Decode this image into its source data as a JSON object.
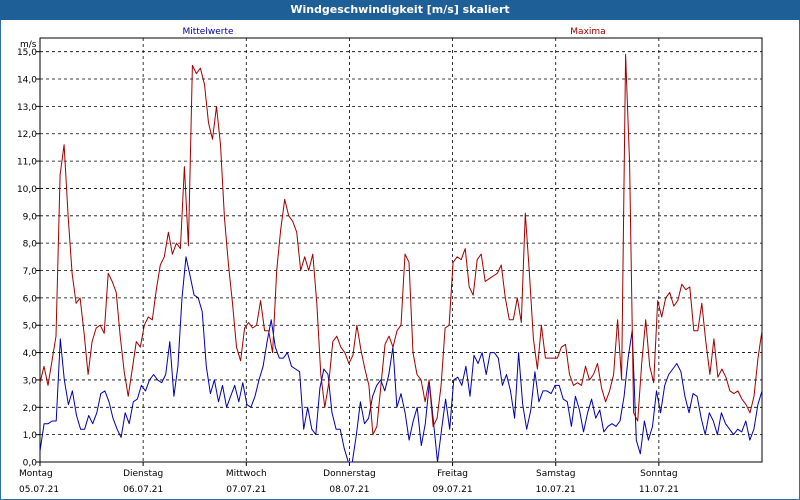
{
  "chart_data": {
    "type": "line",
    "title": "Windgeschwindigkeit [m/s] skaliert",
    "ylabel": "m/s",
    "ylim": [
      0,
      15.5
    ],
    "yticks": [
      "0,0",
      "1,0",
      "2,0",
      "3,0",
      "4,0",
      "5,0",
      "6,0",
      "7,0",
      "8,0",
      "9,0",
      "10,0",
      "11,0",
      "12,0",
      "13,0",
      "14,0",
      "15,0"
    ],
    "xlim": [
      0,
      7
    ],
    "x_ticks": [
      {
        "day": "Montag",
        "date": "05.07.21"
      },
      {
        "day": "Dienstag",
        "date": "06.07.21"
      },
      {
        "day": "Mittwoch",
        "date": "07.07.21"
      },
      {
        "day": "Donnerstag",
        "date": "08.07.21"
      },
      {
        "day": "Freitag",
        "date": "09.07.21"
      },
      {
        "day": "Samstag",
        "date": "10.07.21"
      },
      {
        "day": "Sonntag",
        "date": "11.07.21"
      }
    ],
    "grid": true,
    "series": [
      {
        "name": "Mittelwerte",
        "color": "#0000b0",
        "values": [
          0.4,
          1.4,
          1.4,
          1.5,
          1.5,
          4.5,
          3.0,
          2.1,
          2.6,
          1.7,
          1.2,
          1.2,
          1.7,
          1.4,
          1.8,
          2.5,
          2.6,
          2.2,
          1.6,
          1.2,
          0.9,
          1.8,
          1.4,
          2.2,
          2.3,
          2.8,
          2.6,
          3.0,
          3.2,
          3.0,
          2.9,
          3.2,
          4.4,
          2.4,
          3.5,
          6.0,
          7.5,
          6.8,
          6.1,
          6.0,
          5.5,
          3.5,
          2.5,
          3.0,
          2.2,
          2.8,
          2.0,
          2.4,
          2.8,
          2.2,
          2.9,
          2.1,
          2.0,
          2.4,
          3.0,
          3.5,
          4.4,
          5.2,
          4.2,
          3.8,
          3.8,
          4.0,
          3.5,
          3.4,
          3.3,
          1.2,
          2.0,
          1.2,
          1.0,
          2.7,
          3.4,
          3.2,
          1.8,
          1.2,
          1.2,
          0.5,
          0.0,
          0.0,
          1.0,
          2.2,
          1.4,
          1.6,
          2.4,
          2.8,
          3.0,
          2.6,
          3.2,
          4.2,
          2.0,
          2.5,
          1.8,
          0.8,
          1.5,
          2.0,
          0.6,
          1.4,
          2.9,
          1.5,
          0.0,
          1.2,
          2.3,
          1.2,
          3.0,
          3.1,
          2.8,
          3.5,
          2.4,
          3.9,
          3.6,
          4.0,
          3.2,
          4.0,
          4.0,
          3.8,
          2.8,
          3.2,
          2.6,
          1.6,
          4.0,
          2.1,
          1.2,
          1.9,
          3.3,
          2.2,
          2.6,
          2.6,
          2.5,
          2.8,
          2.8,
          2.3,
          2.2,
          1.3,
          2.4,
          1.9,
          1.1,
          1.8,
          2.3,
          1.6,
          1.9,
          1.1,
          1.3,
          1.4,
          1.3,
          1.5,
          2.4,
          3.8,
          4.8,
          0.8,
          0.3,
          1.5,
          0.8,
          1.3,
          2.6,
          1.8,
          2.8,
          3.2,
          3.4,
          3.6,
          3.3,
          2.4,
          1.8,
          2.5,
          2.4,
          1.6,
          1.0,
          1.8,
          1.5,
          1.0,
          1.8,
          1.4,
          1.2,
          1.0,
          1.2,
          1.1,
          1.5,
          0.8,
          1.2,
          2.1,
          2.6
        ]
      },
      {
        "name": "Maxima",
        "color": "#a00000",
        "values": [
          2.9,
          3.5,
          2.8,
          3.7,
          4.6,
          10.5,
          11.6,
          9.0,
          6.9,
          5.8,
          6.0,
          4.7,
          3.2,
          4.4,
          4.9,
          5.0,
          4.7,
          6.9,
          6.6,
          6.2,
          4.6,
          3.3,
          2.4,
          3.4,
          4.4,
          4.2,
          5.0,
          5.3,
          5.2,
          6.3,
          7.2,
          7.5,
          8.4,
          7.6,
          8.0,
          7.8,
          10.8,
          7.9,
          14.5,
          14.2,
          14.4,
          13.8,
          12.4,
          11.8,
          13.0,
          11.6,
          8.9,
          7.2,
          5.8,
          4.2,
          3.7,
          4.9,
          5.1,
          4.9,
          5.0,
          5.9,
          4.8,
          4.8,
          4.0,
          7.0,
          8.5,
          9.6,
          9.0,
          8.8,
          8.4,
          7.0,
          7.5,
          7.0,
          7.6,
          5.8,
          3.2,
          2.0,
          2.9,
          4.4,
          4.6,
          4.2,
          4.0,
          3.6,
          3.9,
          5.0,
          4.1,
          3.4,
          2.8,
          1.0,
          1.3,
          2.8,
          4.3,
          4.6,
          4.2,
          4.8,
          5.0,
          7.6,
          7.3,
          4.0,
          3.2,
          3.0,
          2.2,
          3.0,
          1.3,
          1.6,
          2.8,
          4.9,
          5.0,
          7.3,
          7.5,
          7.4,
          7.8,
          6.4,
          6.1,
          7.4,
          7.6,
          6.6,
          6.7,
          6.8,
          6.9,
          7.2,
          6.0,
          5.2,
          5.2,
          6.0,
          5.1,
          9.1,
          6.9,
          4.5,
          3.4,
          5.0,
          3.8,
          3.8,
          3.8,
          3.8,
          4.2,
          4.3,
          3.2,
          2.8,
          2.9,
          2.8,
          3.5,
          3.0,
          3.2,
          3.6,
          2.7,
          2.2,
          2.6,
          3.2,
          5.2,
          3.0,
          14.9,
          10.9,
          1.8,
          1.5,
          3.6,
          5.2,
          3.5,
          2.9,
          5.9,
          5.3,
          6.0,
          6.2,
          5.7,
          5.9,
          6.5,
          6.3,
          6.4,
          4.8,
          4.8,
          5.8,
          4.4,
          3.2,
          4.5,
          3.1,
          3.4,
          3.1,
          2.6,
          2.5,
          2.6,
          2.3,
          2.1,
          1.8,
          2.4,
          3.8,
          4.8
        ]
      }
    ]
  }
}
